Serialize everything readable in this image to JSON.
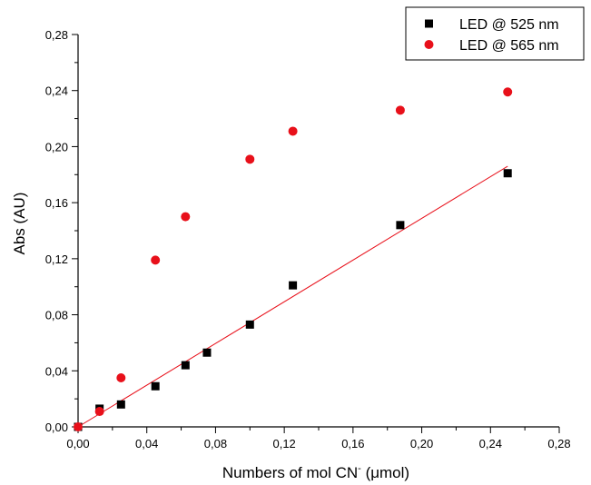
{
  "chart_data": {
    "type": "scatter",
    "title": "",
    "xlabel": "Numbers of mol CN",
    "xlabel_sup": "-",
    "xlabel_unit": " (μmol)",
    "ylabel": "Abs (AU)",
    "xlim": [
      0.0,
      0.28
    ],
    "ylim": [
      0.0,
      0.28
    ],
    "x_ticks": [
      "0,00",
      "0,04",
      "0,08",
      "0,12",
      "0,16",
      "0,20",
      "0,24",
      "0,28"
    ],
    "y_ticks": [
      "0,00",
      "0,04",
      "0,08",
      "0,12",
      "0,16",
      "0,20",
      "0,24",
      "0,28"
    ],
    "grid": false,
    "legend_position": "top-right",
    "series": [
      {
        "name": "LED @ 525 nm",
        "marker": "square",
        "color": "#000000",
        "x": [
          0.0,
          0.0125,
          0.025,
          0.045,
          0.0625,
          0.075,
          0.1,
          0.125,
          0.1875,
          0.25
        ],
        "y": [
          0.0,
          0.013,
          0.016,
          0.029,
          0.044,
          0.053,
          0.073,
          0.101,
          0.144,
          0.181
        ]
      },
      {
        "name": "LED @ 565 nm",
        "marker": "circle",
        "color": "#e8101a",
        "x": [
          0.0,
          0.0125,
          0.025,
          0.045,
          0.0625,
          0.1,
          0.125,
          0.1875,
          0.25
        ],
        "y": [
          0.0,
          0.011,
          0.035,
          0.119,
          0.15,
          0.191,
          0.211,
          0.226,
          0.239
        ]
      }
    ],
    "fit_line": {
      "color": "#e8101a",
      "x": [
        0.0,
        0.25
      ],
      "y": [
        0.0,
        0.186
      ]
    }
  }
}
